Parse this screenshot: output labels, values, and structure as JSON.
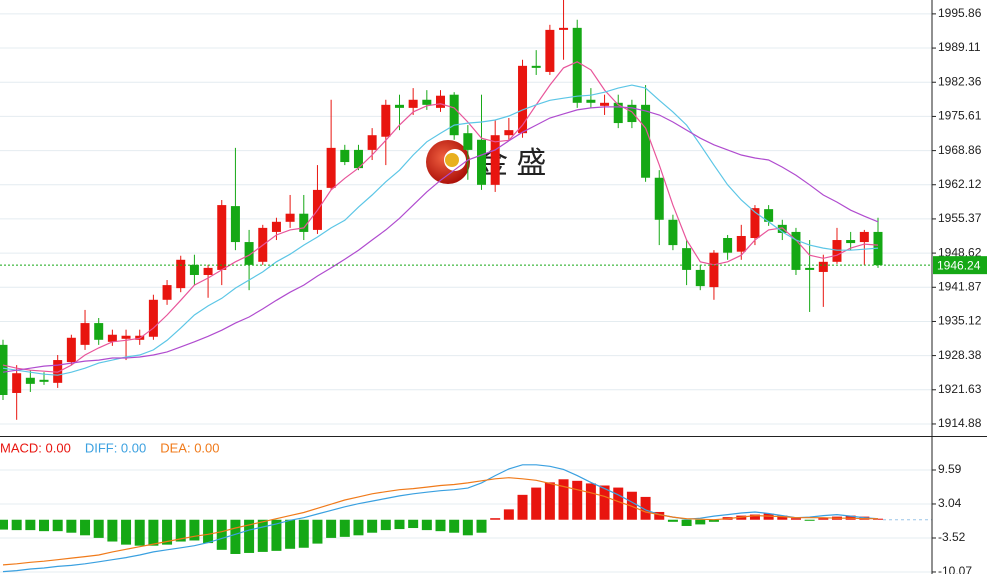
{
  "chart_data": [
    {
      "type": "candlestick",
      "watermark": "金 盛",
      "up_color": "#e8150f",
      "down_color": "#15a815",
      "open": [
        1930.5,
        1921.0,
        1924.0,
        1923.6,
        1923.0,
        1927.1,
        1930.5,
        1934.8,
        1931.1,
        1931.7,
        1931.5,
        1932.1,
        1939.4,
        1941.7,
        1946.3,
        1944.3,
        1945.3,
        1957.9,
        1950.8,
        1946.9,
        1952.8,
        1954.8,
        1956.4,
        1953.2,
        1961.5,
        1969.0,
        1969.0,
        1969.0,
        1971.6,
        1977.9,
        1977.3,
        1978.9,
        1977.3,
        1979.9,
        1972.3,
        1971.0,
        1962.1,
        1971.9,
        1972.3,
        1985.6,
        1984.4,
        1992.7,
        1993.1,
        1978.9,
        1977.7,
        1978.3,
        1977.9,
        1977.9,
        1963.5,
        1955.2,
        1949.6,
        1945.3,
        1941.9,
        1951.6,
        1948.9,
        1951.6,
        1957.3,
        1954.2,
        1952.8,
        1945.7,
        1944.9,
        1946.9,
        1951.2,
        1950.8,
        1952.8
      ],
      "high": [
        1931.5,
        1926.5,
        1925.5,
        1925.1,
        1928.5,
        1932.5,
        1937.4,
        1935.8,
        1933.5,
        1933.5,
        1933.5,
        1940.4,
        1943.3,
        1948.1,
        1948.3,
        1946.3,
        1959.1,
        1969.4,
        1953.2,
        1954.2,
        1955.6,
        1960.1,
        1960.1,
        1966.0,
        1978.9,
        1970.0,
        1970.0,
        1973.3,
        1978.9,
        1979.9,
        1981.2,
        1980.8,
        1980.8,
        1980.4,
        1973.9,
        1979.9,
        1974.9,
        1975.3,
        1986.8,
        1988.7,
        1993.7,
        1998.6,
        1994.7,
        1981.2,
        1979.9,
        1979.9,
        1978.9,
        1981.8,
        1965.0,
        1956.2,
        1951.2,
        1946.3,
        1949.2,
        1952.2,
        1954.2,
        1958.1,
        1958.1,
        1955.2,
        1953.6,
        1951.2,
        1948.3,
        1953.6,
        1952.8,
        1953.2,
        1955.6
      ],
      "low": [
        1919.6,
        1915.7,
        1921.2,
        1922.6,
        1922.0,
        1926.5,
        1929.5,
        1930.5,
        1930.3,
        1927.5,
        1930.5,
        1931.5,
        1938.4,
        1940.9,
        1942.3,
        1939.8,
        1942.3,
        1949.2,
        1941.3,
        1946.3,
        1951.2,
        1953.6,
        1951.2,
        1952.4,
        1961.1,
        1966.0,
        1965.0,
        1967.0,
        1966.0,
        1972.9,
        1975.9,
        1976.9,
        1976.5,
        1971.0,
        1963.1,
        1961.1,
        1960.7,
        1971.0,
        1971.4,
        1983.8,
        1983.8,
        1986.8,
        1977.3,
        1977.3,
        1975.9,
        1973.3,
        1973.3,
        1962.7,
        1950.2,
        1949.2,
        1942.3,
        1941.3,
        1939.4,
        1947.3,
        1947.3,
        1950.2,
        1954.0,
        1951.2,
        1944.3,
        1937.0,
        1938.0,
        1946.5,
        1949.2,
        1946.3,
        1945.7
      ],
      "close": [
        1920.6,
        1924.9,
        1922.8,
        1923.2,
        1927.5,
        1931.9,
        1934.8,
        1931.5,
        1932.5,
        1932.3,
        1932.3,
        1939.4,
        1942.3,
        1947.3,
        1944.3,
        1945.7,
        1958.1,
        1950.8,
        1946.3,
        1953.6,
        1954.8,
        1956.4,
        1952.8,
        1961.1,
        1969.4,
        1966.6,
        1965.4,
        1971.9,
        1977.9,
        1977.3,
        1978.9,
        1977.9,
        1979.7,
        1971.9,
        1969.0,
        1962.1,
        1971.9,
        1972.9,
        1985.6,
        1985.2,
        1992.7,
        1993.1,
        1978.3,
        1978.3,
        1978.3,
        1974.3,
        1974.5,
        1963.5,
        1955.2,
        1950.2,
        1945.3,
        1942.1,
        1948.7,
        1948.7,
        1952.0,
        1957.5,
        1954.8,
        1952.6,
        1945.3,
        1945.3,
        1946.9,
        1951.2,
        1950.6,
        1952.8,
        1946.24
      ],
      "series": [
        {
          "color": "#e8559a",
          "values": [
            1926.5,
            1925.9,
            1925.5,
            1925.3,
            1925.1,
            1926.5,
            1928.5,
            1929.9,
            1931.1,
            1931.4,
            1931.8,
            1933.8,
            1936.4,
            1939.3,
            1942.3,
            1943.7,
            1945.3,
            1946.9,
            1948.2,
            1950.2,
            1952.2,
            1953.2,
            1953.6,
            1957.1,
            1961.1,
            1963.4,
            1965.4,
            1968.0,
            1970.9,
            1973.9,
            1976.5,
            1977.7,
            1978.1,
            1977.3,
            1974.5,
            1971.3,
            1970.6,
            1970.9,
            1973.9,
            1977.9,
            1981.8,
            1985.2,
            1986.4,
            1984.8,
            1980.8,
            1977.9,
            1976.5,
            1973.3,
            1966.0,
            1958.1,
            1951.2,
            1946.9,
            1946.3,
            1946.9,
            1948.2,
            1951.2,
            1953.2,
            1953.6,
            1951.2,
            1948.2,
            1947.6,
            1948.2,
            1949.6,
            1950.4,
            1950.2
          ]
        },
        {
          "color": "#5cc6e6",
          "values": [
            1925.9,
            1925.5,
            1925.1,
            1924.7,
            1924.5,
            1925.1,
            1925.9,
            1926.9,
            1927.5,
            1928.1,
            1928.5,
            1929.5,
            1931.4,
            1933.8,
            1936.4,
            1938.2,
            1939.7,
            1941.7,
            1943.3,
            1944.9,
            1946.9,
            1948.4,
            1950.2,
            1951.8,
            1953.6,
            1955.1,
            1957.7,
            1960.1,
            1962.7,
            1965.0,
            1968.0,
            1970.6,
            1972.3,
            1973.9,
            1974.3,
            1974.5,
            1974.9,
            1975.7,
            1976.9,
            1977.9,
            1978.8,
            1979.2,
            1979.6,
            1979.8,
            1980.4,
            1981.2,
            1981.8,
            1981.2,
            1978.8,
            1976.5,
            1973.9,
            1970.0,
            1966.0,
            1962.1,
            1959.1,
            1956.7,
            1954.8,
            1952.8,
            1951.2,
            1950.2,
            1949.6,
            1949.2,
            1949.2,
            1949.4,
            1949.6
          ]
        },
        {
          "color": "#b04ccf",
          "values": [
            1925.1,
            1925.5,
            1925.9,
            1926.3,
            1926.5,
            1926.9,
            1927.3,
            1927.5,
            1927.9,
            1927.9,
            1928.1,
            1928.5,
            1929.1,
            1930.1,
            1931.1,
            1932.2,
            1933.4,
            1934.8,
            1936.0,
            1937.6,
            1939.3,
            1940.9,
            1942.3,
            1944.1,
            1945.7,
            1947.4,
            1949.2,
            1951.2,
            1953.2,
            1955.5,
            1958.1,
            1960.7,
            1963.0,
            1965.0,
            1967.0,
            1968.0,
            1969.0,
            1970.8,
            1972.5,
            1973.9,
            1975.3,
            1976.1,
            1976.9,
            1977.3,
            1977.5,
            1977.5,
            1977.3,
            1976.7,
            1975.9,
            1974.5,
            1972.9,
            1971.3,
            1970.0,
            1969.0,
            1968.0,
            1967.4,
            1967.0,
            1965.6,
            1964.0,
            1962.1,
            1960.1,
            1958.7,
            1957.1,
            1955.9,
            1954.8
          ]
        }
      ],
      "current_price": 1946.24,
      "current_price_color": "#15a815",
      "ylim": [
        1912.7,
        1998.6
      ],
      "yticks": [
        1995.86,
        1989.11,
        1982.36,
        1975.61,
        1968.86,
        1962.12,
        1955.37,
        1948.62,
        1941.87,
        1935.12,
        1928.38,
        1921.63,
        1914.88
      ],
      "grid": true
    },
    {
      "type": "macd",
      "legend": [
        {
          "label": "MACD: 0.00",
          "color": "#e8150f"
        },
        {
          "label": "DIFF: 0.00",
          "color": "#3aa0e0"
        },
        {
          "label": "DEA: 0.00",
          "color": "#f07a1a"
        }
      ],
      "up_color": "#e8150f",
      "down_color": "#15a815",
      "values": [
        -1.9,
        -2.0,
        -2.0,
        -2.2,
        -2.2,
        -2.5,
        -3.0,
        -3.5,
        -4.2,
        -4.8,
        -5.0,
        -5.0,
        -4.8,
        -4.2,
        -4.0,
        -4.5,
        -5.8,
        -6.6,
        -6.4,
        -6.2,
        -6.0,
        -5.6,
        -5.4,
        -4.6,
        -3.5,
        -3.3,
        -3.0,
        -2.5,
        -2.0,
        -1.8,
        -1.6,
        -2.0,
        -2.2,
        -2.5,
        -3.0,
        -2.5,
        0.3,
        2.0,
        4.8,
        6.2,
        7.2,
        7.8,
        7.5,
        7.0,
        6.6,
        6.2,
        5.4,
        4.4,
        1.5,
        -0.4,
        -1.2,
        -0.9,
        -0.4,
        0.5,
        0.8,
        1.0,
        1.2,
        0.8,
        0.3,
        -0.2,
        0.3,
        0.6,
        0.8,
        0.6,
        0.2
      ],
      "series": [
        {
          "color": "#3aa0e0",
          "values": [
            -10.0,
            -9.8,
            -9.5,
            -9.3,
            -9.0,
            -8.8,
            -8.5,
            -8.1,
            -7.7,
            -7.3,
            -6.8,
            -6.2,
            -5.8,
            -5.4,
            -5.0,
            -4.4,
            -3.6,
            -2.8,
            -2.0,
            -1.4,
            -0.8,
            -0.1,
            0.4,
            1.1,
            1.8,
            2.5,
            3.1,
            3.6,
            4.1,
            4.6,
            5.0,
            5.3,
            5.6,
            5.8,
            6.1,
            7.1,
            8.5,
            9.8,
            10.6,
            10.6,
            10.3,
            9.7,
            8.5,
            7.2,
            6.0,
            4.8,
            3.4,
            1.9,
            1.0,
            0.5,
            0.1,
            0.3,
            0.7,
            1.0,
            1.3,
            1.5,
            1.2,
            0.8,
            0.4,
            0.5,
            0.8,
            1.0,
            0.7,
            0.4,
            0.2
          ]
        },
        {
          "color": "#f07a1a",
          "values": [
            -8.7,
            -8.5,
            -8.2,
            -8.0,
            -7.7,
            -7.4,
            -7.1,
            -6.8,
            -6.2,
            -5.7,
            -5.2,
            -4.7,
            -4.2,
            -3.7,
            -3.2,
            -2.8,
            -2.3,
            -1.6,
            -1.0,
            -0.4,
            0.2,
            0.8,
            1.4,
            2.2,
            3.0,
            3.8,
            4.4,
            5.0,
            5.4,
            5.8,
            6.0,
            6.3,
            6.6,
            6.8,
            7.1,
            7.5,
            7.9,
            8.1,
            7.9,
            7.6,
            7.0,
            6.4,
            5.8,
            5.2,
            4.5,
            3.5,
            2.6,
            1.5,
            1.0,
            0.5,
            0.2,
            0.1,
            0,
            0.2,
            0.5,
            0.8,
            0.7,
            0.6,
            0.4,
            0.4,
            0.4,
            0.3,
            0.3,
            0.2,
            0.2
          ]
        }
      ],
      "ylim": [
        -10.46,
        15.95
      ],
      "yticks": [
        9.59,
        3.04,
        -3.52,
        -10.07
      ],
      "grid": true
    }
  ]
}
